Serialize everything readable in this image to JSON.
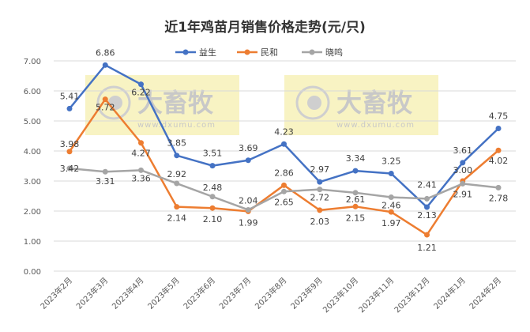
{
  "chart_data": {
    "type": "line",
    "title": "近1年鸡苗月销售价格走势(元/只)",
    "xlabel": "",
    "ylabel": "",
    "ylim": [
      0,
      7
    ],
    "yticks": [
      "0.00",
      "1.00",
      "2.00",
      "3.00",
      "4.00",
      "5.00",
      "6.00",
      "7.00"
    ],
    "grid": true,
    "legend": "top",
    "categories": [
      "2023年2月",
      "2023年3月",
      "2023年4月",
      "2023年5月",
      "2023年6月",
      "2023年7月",
      "2023年8月",
      "2023年9月",
      "2023年10月",
      "2023年11月",
      "2023年12月",
      "2024年1月",
      "2024年2月"
    ],
    "series": [
      {
        "name": "益生",
        "color": "#4472C4",
        "values": [
          5.41,
          6.86,
          6.22,
          3.85,
          3.51,
          3.69,
          4.23,
          2.97,
          3.34,
          3.25,
          2.13,
          3.61,
          4.75
        ]
      },
      {
        "name": "民和",
        "color": "#ED7D31",
        "values": [
          3.98,
          5.72,
          4.27,
          2.14,
          2.1,
          1.99,
          2.86,
          2.03,
          2.15,
          1.97,
          1.21,
          3.0,
          4.02
        ]
      },
      {
        "name": "晓鸣",
        "color": "#A5A5A5",
        "values": [
          3.42,
          3.31,
          3.36,
          2.92,
          2.48,
          2.04,
          2.65,
          2.72,
          2.61,
          2.46,
          2.41,
          2.91,
          2.78
        ]
      }
    ]
  },
  "watermark": {
    "brand": "大畜牧",
    "url": "www.dxumu.com"
  }
}
